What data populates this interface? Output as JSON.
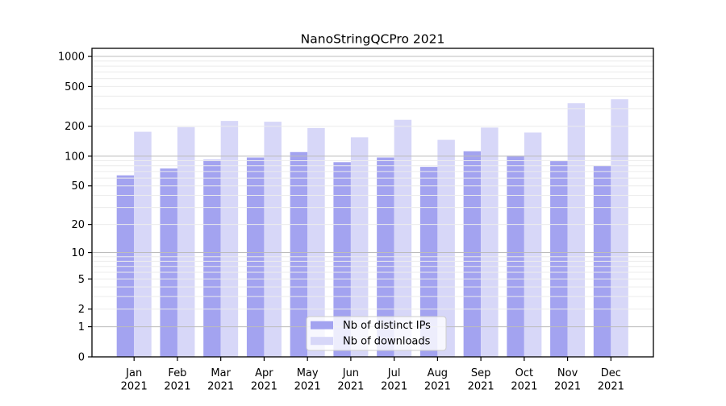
{
  "chart_data": {
    "type": "bar",
    "title": "NanoStringQCPro 2021",
    "year": "2021",
    "months": [
      "Jan",
      "Feb",
      "Mar",
      "Apr",
      "May",
      "Jun",
      "Jul",
      "Aug",
      "Sep",
      "Oct",
      "Nov",
      "Dec"
    ],
    "categories": [
      "Jan 2021",
      "Feb 2021",
      "Mar 2021",
      "Apr 2021",
      "May 2021",
      "Jun 2021",
      "Jul 2021",
      "Aug 2021",
      "Sep 2021",
      "Oct 2021",
      "Nov 2021",
      "Dec 2021"
    ],
    "series": [
      {
        "name": "Nb of distinct IPs",
        "color": "#a3a3f0",
        "values": [
          64,
          75,
          92,
          97,
          110,
          87,
          97,
          78,
          112,
          101,
          89,
          80
        ]
      },
      {
        "name": "Nb of downloads",
        "color": "#d7d7f8",
        "values": [
          176,
          196,
          226,
          222,
          192,
          155,
          232,
          146,
          194,
          173,
          340,
          373
        ]
      }
    ],
    "y_ticks": [
      0,
      1,
      2,
      5,
      10,
      20,
      50,
      100,
      200,
      500,
      1000
    ],
    "y_tick_labels": [
      "0",
      "1",
      "2",
      "5",
      "10",
      "20",
      "50",
      "100",
      "200",
      "500",
      "1000"
    ],
    "y_scale": "log10(1+x)",
    "ylim": [
      0,
      1000
    ],
    "grid": true,
    "legend_position": "lower center",
    "xlabel": "",
    "ylabel": ""
  },
  "colors": {
    "distinct_ips": "#a3a3f0",
    "downloads": "#d7d7f8",
    "major_grid": "#bcbcbc",
    "minor_grid": "#ececec",
    "legend_border": "#cccccc"
  }
}
